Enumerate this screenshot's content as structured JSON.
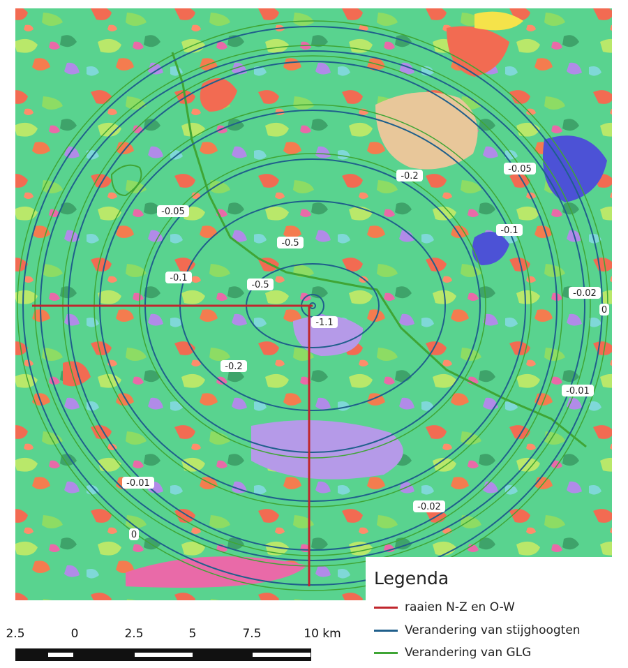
{
  "map": {
    "contours": [
      {
        "label": "-1.1",
        "label2": ""
      },
      {
        "label": "-0.5",
        "label2": "-0.5"
      },
      {
        "label": "-0.2",
        "label2": "-0.2"
      },
      {
        "label": "-0.1",
        "label2": "-0.1"
      },
      {
        "label": "-0.05",
        "label2": "-0.05"
      },
      {
        "label": "-0.02",
        "label2": "-0.02"
      },
      {
        "label": "-0.01",
        "label2": "-0.01"
      },
      {
        "label": "0",
        "label2": "0"
      }
    ],
    "colors": {
      "raaien": "#c0262d",
      "stijghoogten": "#1f5f8b",
      "glg": "#3fa535",
      "background": "#5fd69a"
    }
  },
  "legend": {
    "title": "Legenda",
    "items": [
      {
        "label": "raaien N-Z en O-W",
        "color": "#c0262d"
      },
      {
        "label": "Verandering van stijghoogten",
        "color": "#1f5f8b"
      },
      {
        "label": "Verandering van GLG",
        "color": "#3fa535"
      }
    ]
  },
  "scalebar": {
    "labels": [
      "2.5",
      "0",
      "2.5",
      "5",
      "7.5",
      "10 km"
    ]
  }
}
